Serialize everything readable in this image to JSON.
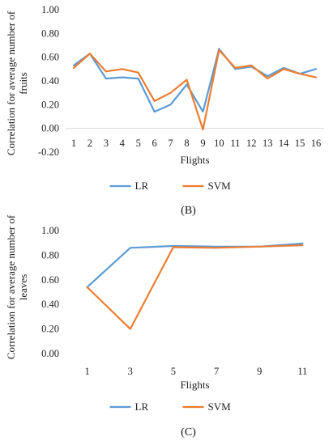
{
  "chart_data": [
    {
      "type": "line",
      "panel_label": "(B)",
      "xlabel": "Flights",
      "ylabel": "Correlation for average number of fruits",
      "categories": [
        "1",
        "2",
        "3",
        "4",
        "5",
        "6",
        "7",
        "8",
        "9",
        "10",
        "11",
        "12",
        "13",
        "14",
        "15",
        "16"
      ],
      "ylim": [
        -0.2,
        1.0
      ],
      "yticks": [
        "-0.20",
        "0.00",
        "0.20",
        "0.40",
        "0.60",
        "0.80",
        "1.00"
      ],
      "grid": false,
      "legend_position": "bottom",
      "series": [
        {
          "name": "LR",
          "color": "#5B9BD5",
          "values": [
            0.53,
            0.63,
            0.42,
            0.43,
            0.42,
            0.14,
            0.2,
            0.37,
            0.14,
            0.67,
            0.5,
            0.52,
            0.44,
            0.51,
            0.46,
            0.5
          ]
        },
        {
          "name": "SVM",
          "color": "#ED7D31",
          "values": [
            0.51,
            0.63,
            0.48,
            0.5,
            0.47,
            0.23,
            0.3,
            0.41,
            -0.01,
            0.66,
            0.51,
            0.53,
            0.42,
            0.5,
            0.46,
            0.43
          ]
        }
      ]
    },
    {
      "type": "line",
      "panel_label": "(C)",
      "xlabel": "Flights",
      "ylabel": "Correlation for average number of leaves",
      "categories": [
        "1",
        "3",
        "5",
        "7",
        "9",
        "11"
      ],
      "ylim": [
        0.0,
        1.0
      ],
      "yticks": [
        "0.00",
        "0.20",
        "0.40",
        "0.60",
        "0.80",
        "1.00"
      ],
      "grid": false,
      "legend_position": "bottom",
      "series": [
        {
          "name": "LR",
          "color": "#5B9BD5",
          "values": [
            0.54,
            0.86,
            0.875,
            0.87,
            0.87,
            0.895
          ]
        },
        {
          "name": "SVM",
          "color": "#ED7D31",
          "values": [
            0.54,
            0.2,
            0.865,
            0.86,
            0.87,
            0.88
          ]
        }
      ]
    }
  ]
}
